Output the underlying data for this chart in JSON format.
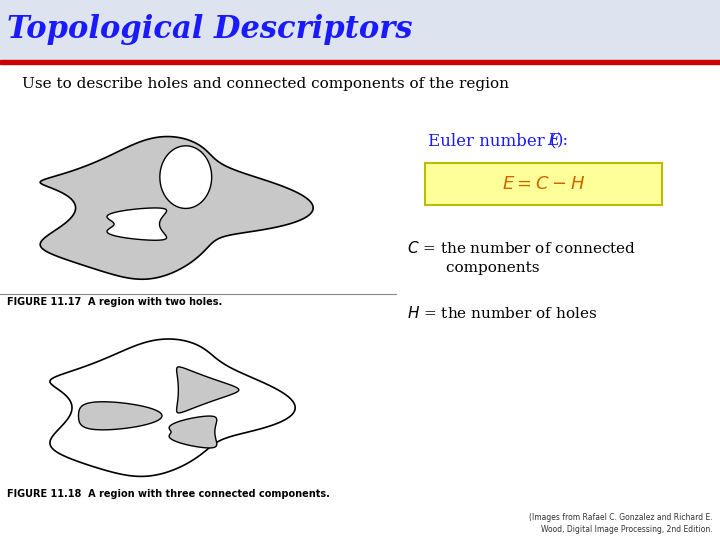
{
  "title": "Topological Descriptors",
  "title_color": "#1a1aff",
  "subtitle": "Use to describe holes and connected components of the region",
  "subtitle_color": "#000000",
  "euler_label_color": "#1a1aff",
  "formula_color": "#cc6600",
  "formula_bg": "#ffff99",
  "fig11_17": "FIGURE 11.17  A region with two holes.",
  "fig11_18": "FIGURE 11.18  A region with three connected components.",
  "credit_line1": "(Images from Rafael C. Gonzalez and Richard E.",
  "credit_line2": "Wood, Digital Image Processing, 2nd Edition.",
  "bg_color": "#ffffff",
  "header_bg_color": "#dde4f0",
  "header_bar_color": "#cc0000",
  "shape_fill": "#c8c8c8",
  "shape_edge": "#000000"
}
